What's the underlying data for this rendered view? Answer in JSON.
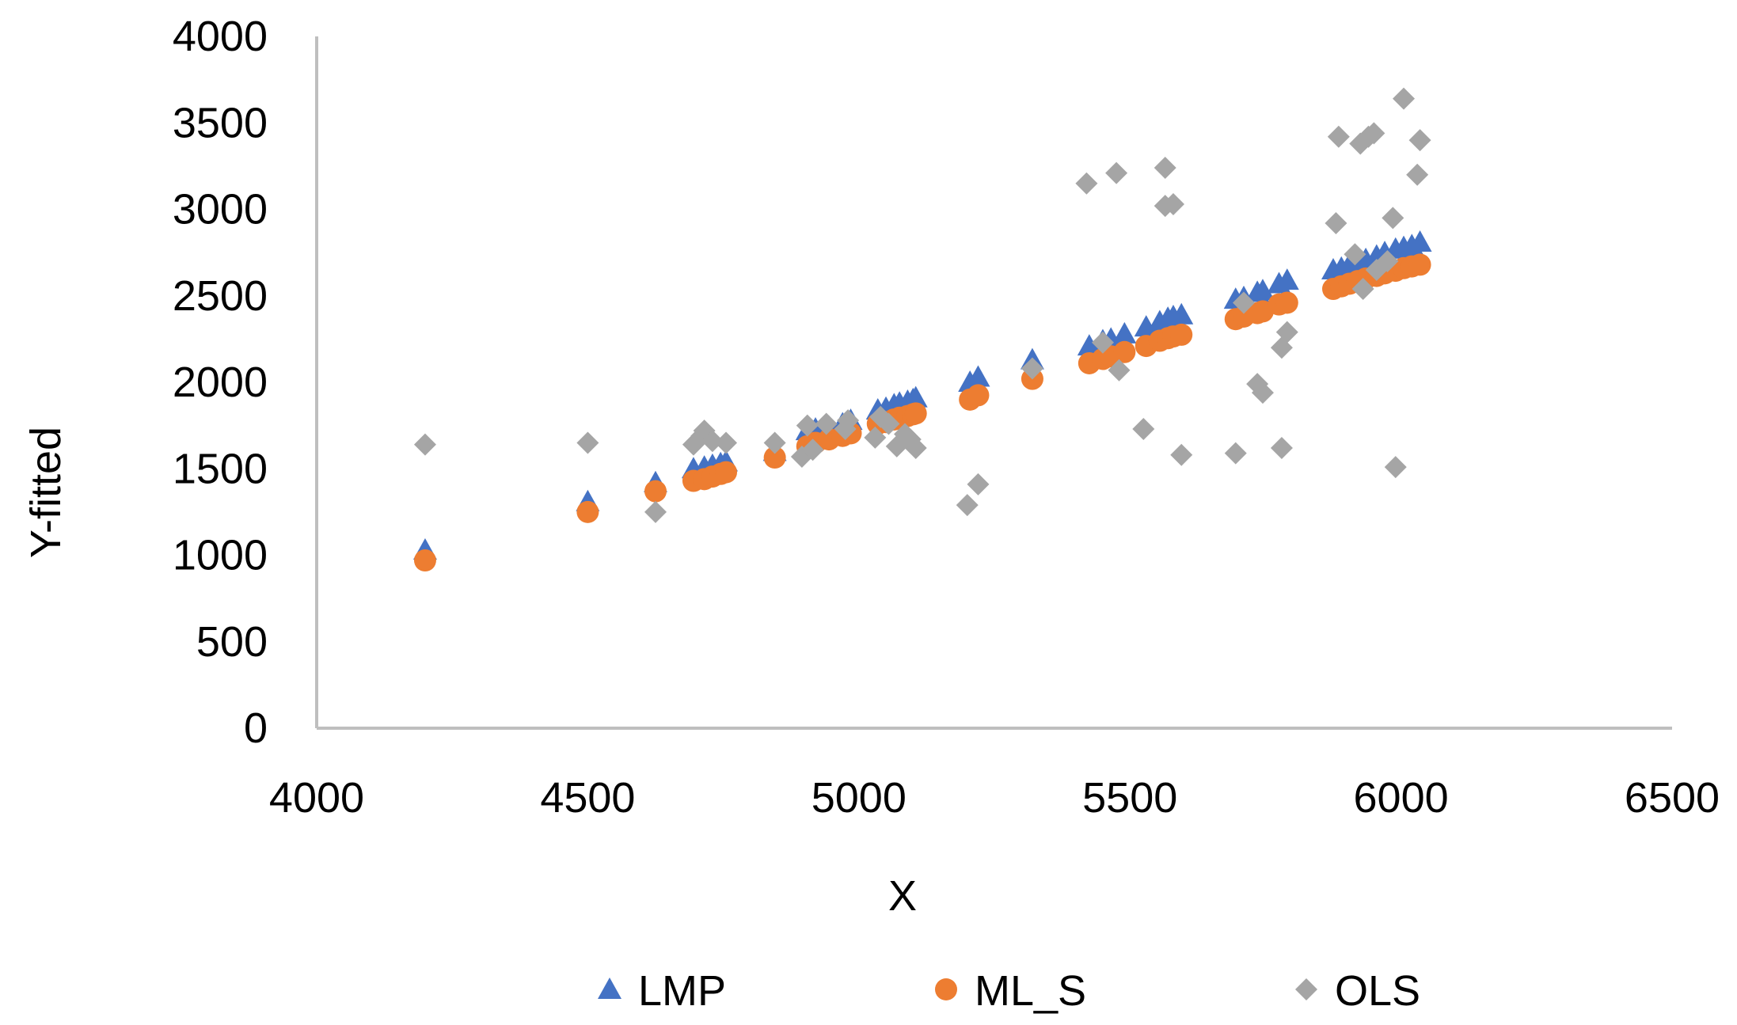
{
  "chart_data": {
    "type": "scatter",
    "title": "",
    "xlabel": "X",
    "ylabel": "Y-fitted",
    "xlim": [
      4000,
      6500
    ],
    "ylim": [
      0,
      4000
    ],
    "xticks": [
      "4000",
      "4500",
      "5000",
      "5500",
      "6000",
      "6500"
    ],
    "yticks": [
      "0",
      "500",
      "1000",
      "1500",
      "2000",
      "2500",
      "3000",
      "3500",
      "4000"
    ],
    "legend_position": "bottom",
    "grid": false,
    "series": [
      {
        "name": "LMP",
        "marker": "triangle",
        "color": "#4472C4",
        "points": [
          [
            4200,
            1030
          ],
          [
            4500,
            1310
          ],
          [
            4625,
            1420
          ],
          [
            4695,
            1500
          ],
          [
            4715,
            1510
          ],
          [
            4730,
            1520
          ],
          [
            4745,
            1530
          ],
          [
            4755,
            1540
          ],
          [
            4845,
            1600
          ],
          [
            4905,
            1720
          ],
          [
            4920,
            1730
          ],
          [
            4945,
            1740
          ],
          [
            4970,
            1760
          ],
          [
            4985,
            1780
          ],
          [
            5035,
            1840
          ],
          [
            5050,
            1850
          ],
          [
            5065,
            1870
          ],
          [
            5075,
            1880
          ],
          [
            5090,
            1890
          ],
          [
            5100,
            1900
          ],
          [
            5105,
            1910
          ],
          [
            5205,
            2000
          ],
          [
            5220,
            2030
          ],
          [
            5320,
            2130
          ],
          [
            5425,
            2210
          ],
          [
            5450,
            2240
          ],
          [
            5465,
            2250
          ],
          [
            5490,
            2280
          ],
          [
            5530,
            2320
          ],
          [
            5555,
            2350
          ],
          [
            5570,
            2370
          ],
          [
            5580,
            2380
          ],
          [
            5595,
            2390
          ],
          [
            5695,
            2480
          ],
          [
            5710,
            2490
          ],
          [
            5735,
            2520
          ],
          [
            5745,
            2530
          ],
          [
            5775,
            2570
          ],
          [
            5790,
            2590
          ],
          [
            5875,
            2650
          ],
          [
            5890,
            2660
          ],
          [
            5905,
            2680
          ],
          [
            5920,
            2700
          ],
          [
            5935,
            2710
          ],
          [
            5955,
            2730
          ],
          [
            5970,
            2750
          ],
          [
            5990,
            2770
          ],
          [
            6005,
            2780
          ],
          [
            6020,
            2790
          ],
          [
            6035,
            2810
          ]
        ]
      },
      {
        "name": "ML_S",
        "marker": "circle",
        "color": "#ED7D31",
        "points": [
          [
            4200,
            970
          ],
          [
            4500,
            1250
          ],
          [
            4625,
            1370
          ],
          [
            4695,
            1430
          ],
          [
            4715,
            1440
          ],
          [
            4730,
            1455
          ],
          [
            4745,
            1470
          ],
          [
            4755,
            1480
          ],
          [
            4845,
            1565
          ],
          [
            4905,
            1630
          ],
          [
            4920,
            1650
          ],
          [
            4945,
            1670
          ],
          [
            4970,
            1690
          ],
          [
            4985,
            1705
          ],
          [
            5035,
            1760
          ],
          [
            5050,
            1770
          ],
          [
            5065,
            1785
          ],
          [
            5075,
            1795
          ],
          [
            5090,
            1805
          ],
          [
            5100,
            1815
          ],
          [
            5105,
            1820
          ],
          [
            5205,
            1900
          ],
          [
            5220,
            1925
          ],
          [
            5320,
            2020
          ],
          [
            5425,
            2110
          ],
          [
            5450,
            2135
          ],
          [
            5465,
            2150
          ],
          [
            5490,
            2175
          ],
          [
            5530,
            2210
          ],
          [
            5555,
            2240
          ],
          [
            5570,
            2255
          ],
          [
            5580,
            2265
          ],
          [
            5595,
            2275
          ],
          [
            5695,
            2365
          ],
          [
            5710,
            2380
          ],
          [
            5735,
            2400
          ],
          [
            5745,
            2410
          ],
          [
            5775,
            2450
          ],
          [
            5790,
            2460
          ],
          [
            5875,
            2540
          ],
          [
            5890,
            2555
          ],
          [
            5905,
            2570
          ],
          [
            5920,
            2585
          ],
          [
            5935,
            2600
          ],
          [
            5955,
            2615
          ],
          [
            5970,
            2630
          ],
          [
            5990,
            2645
          ],
          [
            6005,
            2660
          ],
          [
            6020,
            2670
          ],
          [
            6035,
            2680
          ]
        ]
      },
      {
        "name": "OLS",
        "marker": "diamond",
        "color": "#A5A5A5",
        "points": [
          [
            4200,
            1640
          ],
          [
            4500,
            1650
          ],
          [
            4625,
            1250
          ],
          [
            4695,
            1640
          ],
          [
            4710,
            1690
          ],
          [
            4715,
            1720
          ],
          [
            4730,
            1660
          ],
          [
            4755,
            1650
          ],
          [
            4845,
            1650
          ],
          [
            4895,
            1570
          ],
          [
            4905,
            1750
          ],
          [
            4915,
            1610
          ],
          [
            4940,
            1760
          ],
          [
            4975,
            1730
          ],
          [
            4980,
            1780
          ],
          [
            5030,
            1680
          ],
          [
            5040,
            1800
          ],
          [
            5055,
            1760
          ],
          [
            5070,
            1630
          ],
          [
            5085,
            1700
          ],
          [
            5095,
            1670
          ],
          [
            5105,
            1620
          ],
          [
            5200,
            1290
          ],
          [
            5220,
            1410
          ],
          [
            5320,
            2080
          ],
          [
            5420,
            3150
          ],
          [
            5450,
            2230
          ],
          [
            5475,
            3210
          ],
          [
            5480,
            2070
          ],
          [
            5525,
            1730
          ],
          [
            5565,
            3240
          ],
          [
            5565,
            3020
          ],
          [
            5580,
            3030
          ],
          [
            5595,
            1580
          ],
          [
            5695,
            1590
          ],
          [
            5710,
            2460
          ],
          [
            5735,
            1990
          ],
          [
            5745,
            1940
          ],
          [
            5780,
            1620
          ],
          [
            5780,
            2200
          ],
          [
            5790,
            2290
          ],
          [
            5880,
            2920
          ],
          [
            5885,
            3420
          ],
          [
            5915,
            2740
          ],
          [
            5925,
            3380
          ],
          [
            5930,
            2540
          ],
          [
            5940,
            3420
          ],
          [
            5950,
            3440
          ],
          [
            5975,
            2700
          ],
          [
            5985,
            2950
          ],
          [
            5990,
            1510
          ],
          [
            6005,
            3640
          ],
          [
            6030,
            3200
          ],
          [
            6035,
            3400
          ],
          [
            5955,
            2650
          ]
        ]
      }
    ]
  }
}
